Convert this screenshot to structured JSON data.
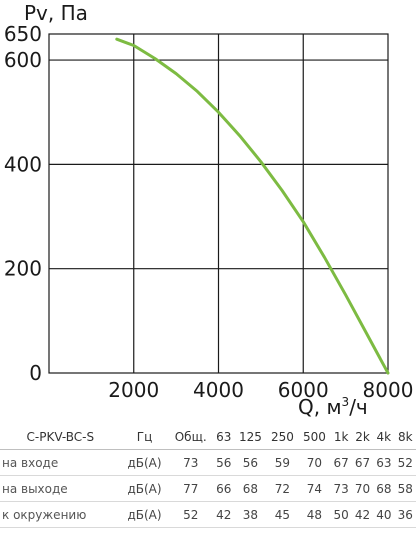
{
  "chart_data": {
    "type": "line",
    "ylabel": "Pv, Па",
    "xlabel_prefix": "Q, м",
    "xlabel_sup": "3",
    "xlabel_suffix": "/ч",
    "xlim": [
      0,
      8000
    ],
    "ylim": [
      0,
      650
    ],
    "xticks": [
      2000,
      4000,
      6000,
      8000
    ],
    "yticks": [
      0,
      200,
      400,
      600,
      650
    ],
    "grid": true,
    "series": [
      {
        "color": "#7dbb42",
        "x": [
          1600,
          2000,
          2500,
          3000,
          3500,
          4000,
          4500,
          5000,
          5500,
          6000,
          6500,
          7000,
          7500,
          8000
        ],
        "y": [
          640,
          628,
          603,
          574,
          540,
          500,
          455,
          405,
          350,
          290,
          222,
          150,
          75,
          0
        ]
      }
    ]
  },
  "table": {
    "headers": [
      "C-PKV-BC-S",
      "Гц",
      "Общ.",
      "63",
      "125",
      "250",
      "500",
      "1k",
      "2k",
      "4k",
      "8k"
    ],
    "rows": [
      [
        "на входе",
        "дБ(А)",
        "73",
        "56",
        "56",
        "59",
        "70",
        "67",
        "67",
        "63",
        "52"
      ],
      [
        "на выходе",
        "дБ(А)",
        "77",
        "66",
        "68",
        "72",
        "74",
        "73",
        "70",
        "68",
        "58"
      ],
      [
        "к окружению",
        "дБ(А)",
        "52",
        "42",
        "38",
        "45",
        "48",
        "50",
        "42",
        "40",
        "36"
      ]
    ]
  }
}
